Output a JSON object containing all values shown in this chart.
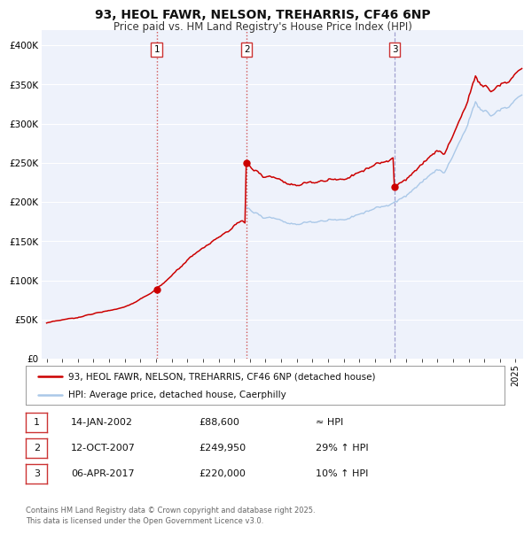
{
  "title": "93, HEOL FAWR, NELSON, TREHARRIS, CF46 6NP",
  "subtitle": "Price paid vs. HM Land Registry's House Price Index (HPI)",
  "title_fontsize": 10,
  "subtitle_fontsize": 8.5,
  "background_color": "#ffffff",
  "plot_bg_color": "#eef2fb",
  "grid_color": "#ffffff",
  "hpi_color": "#aac8e8",
  "property_color": "#cc0000",
  "ylim": [
    0,
    420000
  ],
  "yticks": [
    0,
    50000,
    100000,
    150000,
    200000,
    250000,
    300000,
    350000,
    400000
  ],
  "xlim_start": 1994.7,
  "xlim_end": 2025.5,
  "xticks": [
    1995,
    1996,
    1997,
    1998,
    1999,
    2000,
    2001,
    2002,
    2003,
    2004,
    2005,
    2006,
    2007,
    2008,
    2009,
    2010,
    2011,
    2012,
    2013,
    2014,
    2015,
    2016,
    2017,
    2018,
    2019,
    2020,
    2021,
    2022,
    2023,
    2024,
    2025
  ],
  "sale_dates": [
    2002.04,
    2007.79,
    2017.27
  ],
  "sale_prices": [
    88600,
    249950,
    220000
  ],
  "sale_labels": [
    "1",
    "2",
    "3"
  ],
  "legend_line1": "93, HEOL FAWR, NELSON, TREHARRIS, CF46 6NP (detached house)",
  "legend_line2": "HPI: Average price, detached house, Caerphilly",
  "table_rows": [
    {
      "num": "1",
      "date": "14-JAN-2002",
      "price": "£88,600",
      "rel": "≈ HPI"
    },
    {
      "num": "2",
      "date": "12-OCT-2007",
      "price": "£249,950",
      "rel": "29% ↑ HPI"
    },
    {
      "num": "3",
      "date": "06-APR-2017",
      "price": "£220,000",
      "rel": "10% ↑ HPI"
    }
  ],
  "footnote": "Contains HM Land Registry data © Crown copyright and database right 2025.\nThis data is licensed under the Open Government Licence v3.0."
}
